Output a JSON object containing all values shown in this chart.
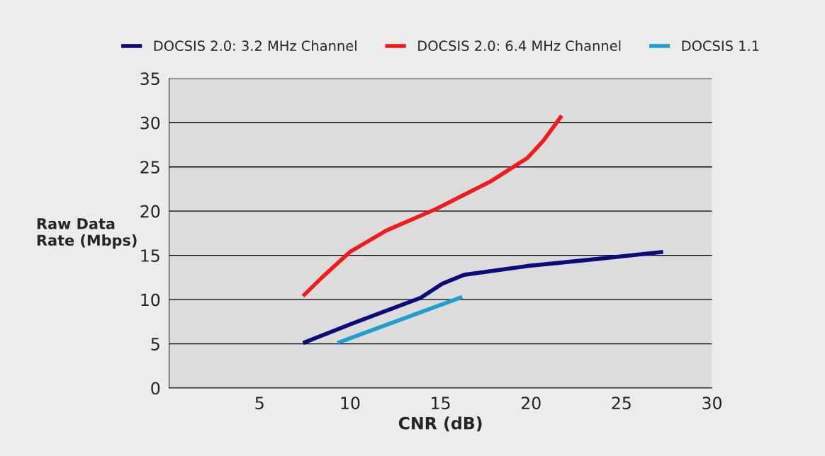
{
  "chart_data": {
    "type": "line",
    "xlabel": "CNR (dB)",
    "ylabel": "Raw Data\nRate (Mbps)",
    "xlim": [
      0,
      30
    ],
    "xticks": [
      5,
      10,
      15,
      20,
      25,
      30
    ],
    "ylim": [
      0,
      35
    ],
    "yticks": [
      0,
      5,
      10,
      15,
      20,
      25,
      30,
      35
    ],
    "grid": "y",
    "legend": "top",
    "line_style": "solid",
    "series": [
      {
        "name": "DOCSIS 2.0: 3.2 MHz Channel",
        "color": "#0b0b7a",
        "x": [
          7.4,
          10,
          13.9,
          15.1,
          16.3,
          19.8,
          23.7,
          27.3
        ],
        "values": [
          5.1,
          7.2,
          10.2,
          11.8,
          12.8,
          13.8,
          14.6,
          15.4
        ]
      },
      {
        "name": "DOCSIS 2.0: 6.4 MHz Channel",
        "color": "#ee1c1c",
        "x": [
          7.4,
          8.5,
          10,
          12,
          14.7,
          17.8,
          19.8,
          20.7,
          21.7
        ],
        "values": [
          10.4,
          12.6,
          15.4,
          17.8,
          20.2,
          23.4,
          26,
          28,
          30.8
        ]
      },
      {
        "name": "DOCSIS 1.1",
        "color": "#1e9fd0",
        "x": [
          9.3,
          16.2
        ],
        "values": [
          5.1,
          10.3
        ]
      }
    ]
  }
}
